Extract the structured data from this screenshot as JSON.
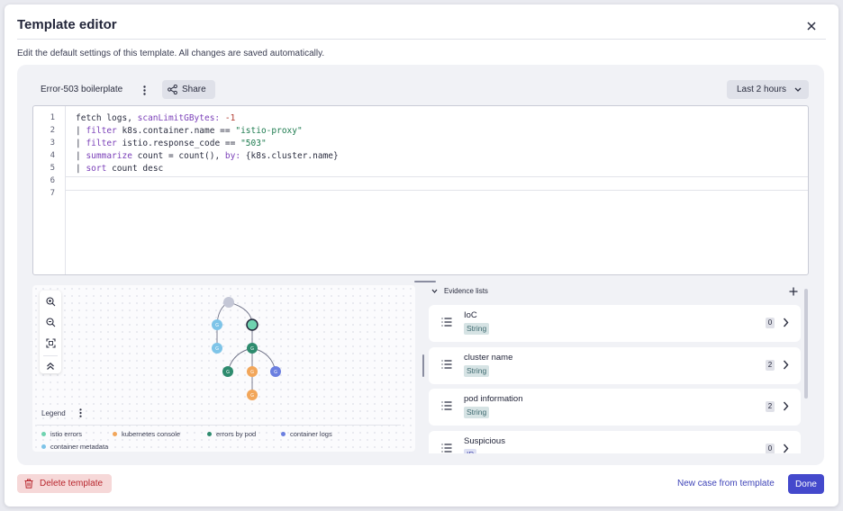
{
  "dialog": {
    "title": "Template editor",
    "subtitle": "Edit the default settings of this template. All changes are saved automatically."
  },
  "toolbar": {
    "template_name": "Error-503 boilerplate",
    "share_label": "Share",
    "timeframe_label": "Last 2 hours"
  },
  "editor": {
    "line_numbers": [
      "1",
      "2",
      "3",
      "4",
      "5",
      "6",
      "7"
    ],
    "lines": [
      [
        {
          "t": "fetch logs, ",
          "c": ""
        },
        {
          "t": "scanLimitGBytes:",
          "c": "kw"
        },
        {
          "t": " ",
          "c": ""
        },
        {
          "t": "-1",
          "c": "num"
        }
      ],
      [
        {
          "t": "| ",
          "c": ""
        },
        {
          "t": "filter",
          "c": "kw"
        },
        {
          "t": " k8s.container.name == ",
          "c": ""
        },
        {
          "t": "\"istio-proxy\"",
          "c": "str"
        }
      ],
      [
        {
          "t": "| ",
          "c": ""
        },
        {
          "t": "filter",
          "c": "kw"
        },
        {
          "t": " istio.response_code == ",
          "c": ""
        },
        {
          "t": "\"503\"",
          "c": "str"
        }
      ],
      [
        {
          "t": "| ",
          "c": ""
        },
        {
          "t": "summarize",
          "c": "kw"
        },
        {
          "t": " count = count(), ",
          "c": ""
        },
        {
          "t": "by:",
          "c": "kw"
        },
        {
          "t": " {k8s.cluster.name}",
          "c": ""
        }
      ],
      [
        {
          "t": "| ",
          "c": ""
        },
        {
          "t": "sort",
          "c": "kw"
        },
        {
          "t": " count desc",
          "c": ""
        }
      ],
      [],
      []
    ]
  },
  "graph": {
    "legend_label": "Legend",
    "legend": [
      {
        "label": "istio errors",
        "color": "#6fd3b0"
      },
      {
        "label": "kubernetes console",
        "color": "#f2a65a"
      },
      {
        "label": "errors by pod",
        "color": "#2e8b6e"
      },
      {
        "label": "container logs",
        "color": "#6b7fe0"
      },
      {
        "label": "container metadata",
        "color": "#7ec4e8"
      }
    ]
  },
  "evidence": {
    "header": "Evidence lists",
    "items": [
      {
        "title": "IoC",
        "type": "String",
        "count": "0"
      },
      {
        "title": "cluster name",
        "type": "String",
        "count": "2"
      },
      {
        "title": "pod information",
        "type": "String",
        "count": "2"
      },
      {
        "title": "Suspicious",
        "type": "IP",
        "count": "0"
      }
    ]
  },
  "footer": {
    "delete_label": "Delete template",
    "new_case_label": "New case from template",
    "done_label": "Done"
  },
  "colors": {
    "primary": "#4449cc",
    "danger": "#b8262d",
    "danger_bg": "#f6d8d8",
    "panel_bg": "#f1f2f6"
  }
}
